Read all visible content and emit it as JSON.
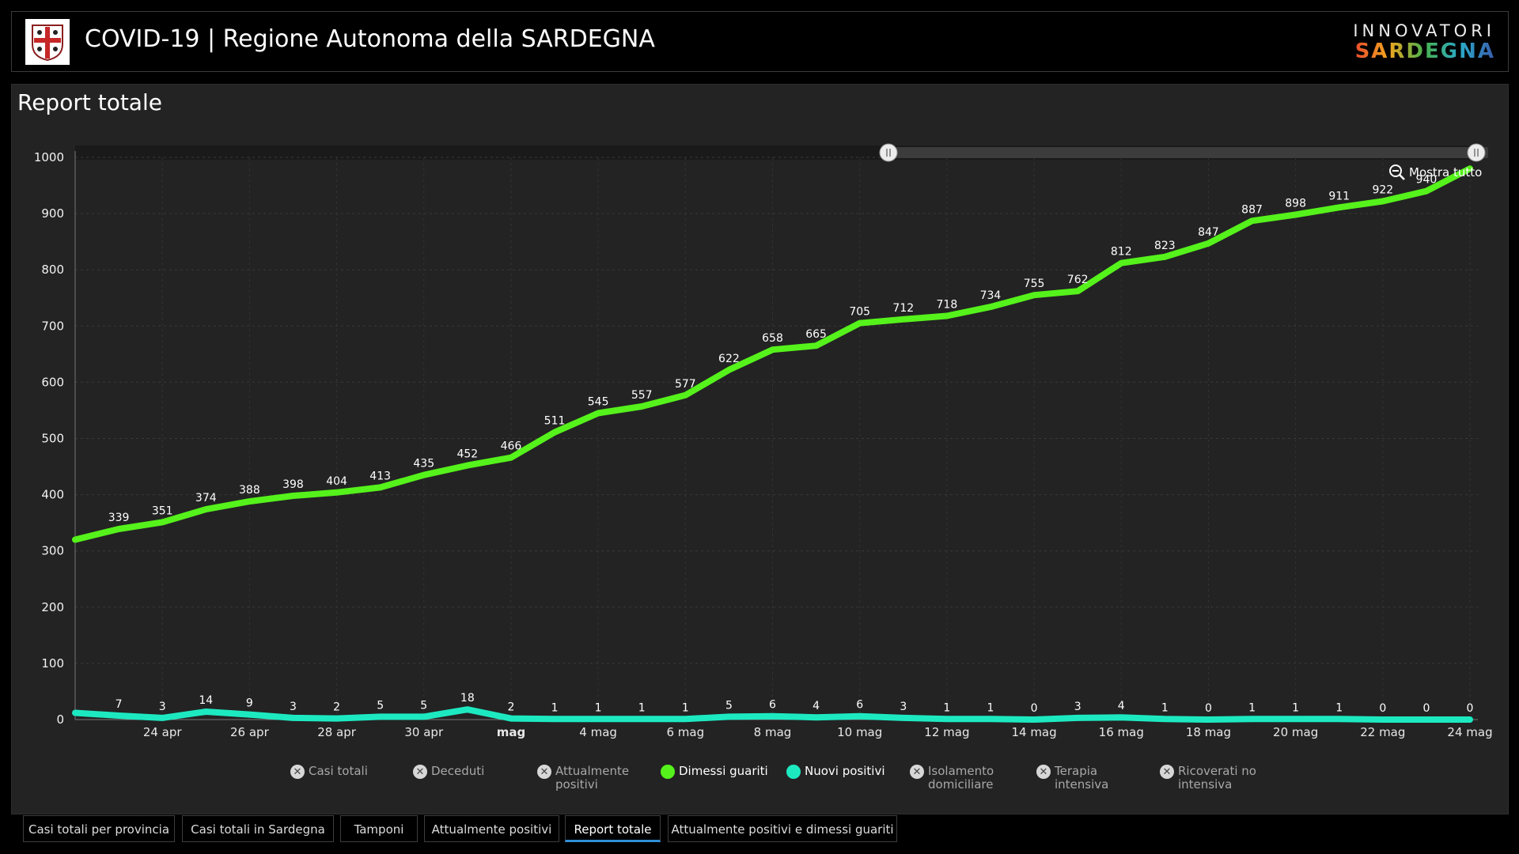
{
  "header": {
    "title": "COVID-19 | Regione Autonoma della SARDEGNA",
    "brand_top": "INNOVATORI",
    "brand_bottom": "SARDEGNA"
  },
  "panel": {
    "title": "Report totale"
  },
  "zoom": {
    "label": "Mostra tutto"
  },
  "legend": [
    {
      "label": "Casi totali",
      "active": false,
      "color": "#d7d7d7"
    },
    {
      "label": "Deceduti",
      "active": false,
      "color": "#d7d7d7"
    },
    {
      "label": "Attualmente positivi",
      "active": false,
      "color": "#d7d7d7"
    },
    {
      "label": "Dimessi guariti",
      "active": true,
      "color": "#55f21b"
    },
    {
      "label": "Nuovi positivi",
      "active": true,
      "color": "#1de9c1"
    },
    {
      "label": "Isolamento domiciliare",
      "active": false,
      "color": "#d7d7d7"
    },
    {
      "label": "Terapia intensiva",
      "active": false,
      "color": "#d7d7d7"
    },
    {
      "label": "Ricoverati no intensiva",
      "active": false,
      "color": "#d7d7d7"
    }
  ],
  "tabs": [
    {
      "label": "Casi totali per provincia",
      "active": false
    },
    {
      "label": "Casi totali in Sardegna",
      "active": false
    },
    {
      "label": "Tamponi",
      "active": false
    },
    {
      "label": "Attualmente positivi",
      "active": false
    },
    {
      "label": "Report totale",
      "active": true
    },
    {
      "label": "Attualmente positivi e dimessi guariti",
      "active": false
    }
  ],
  "chart_data": {
    "type": "line",
    "title": "Report totale",
    "x": [
      "22 apr",
      "23 apr",
      "24 apr",
      "25 apr",
      "26 apr",
      "27 apr",
      "28 apr",
      "29 apr",
      "30 apr",
      "1 mag",
      "2 mag",
      "3 mag",
      "4 mag",
      "5 mag",
      "6 mag",
      "7 mag",
      "8 mag",
      "9 mag",
      "10 mag",
      "11 mag",
      "12 mag",
      "13 mag",
      "14 mag",
      "15 mag",
      "16 mag",
      "17 mag",
      "18 mag",
      "19 mag",
      "20 mag",
      "21 mag",
      "22 mag",
      "23 mag",
      "24 mag"
    ],
    "x_tick_labels": [
      "24 apr",
      "26 apr",
      "28 apr",
      "30 apr",
      "mag",
      "4 mag",
      "6 mag",
      "8 mag",
      "10 mag",
      "12 mag",
      "14 mag",
      "16 mag",
      "18 mag",
      "20 mag",
      "22 mag",
      "24 mag"
    ],
    "ylim": [
      0,
      1000
    ],
    "y_ticks": [
      0,
      100,
      200,
      300,
      400,
      500,
      600,
      700,
      800,
      900,
      1000
    ],
    "grid": true,
    "series": [
      {
        "name": "Dimessi guariti",
        "color": "#55f21b",
        "values": [
          320,
          339,
          351,
          374,
          388,
          398,
          404,
          413,
          435,
          452,
          466,
          511,
          545,
          557,
          577,
          622,
          658,
          665,
          705,
          712,
          718,
          734,
          755,
          762,
          812,
          823,
          847,
          887,
          898,
          911,
          922,
          940,
          980
        ],
        "labels": [
          null,
          "339",
          "351",
          "374",
          "388",
          "398",
          "404",
          "413",
          "435",
          "452",
          "466",
          "511",
          "545",
          "557",
          "577",
          "622",
          "658",
          "665",
          "705",
          "712",
          "718",
          "734",
          "755",
          "762",
          "812",
          "823",
          "847",
          "887",
          "898",
          "911",
          "922",
          "940",
          null
        ]
      },
      {
        "name": "Nuovi positivi",
        "color": "#1de9c1",
        "values": [
          12,
          7,
          3,
          14,
          9,
          3,
          2,
          5,
          5,
          18,
          2,
          1,
          1,
          1,
          1,
          5,
          6,
          4,
          6,
          3,
          1,
          1,
          0,
          3,
          4,
          1,
          0,
          1,
          1,
          1,
          0,
          0,
          0
        ],
        "labels": [
          null,
          "7",
          "3",
          "14",
          "9",
          "3",
          "2",
          "5",
          "5",
          "18",
          "2",
          "1",
          "1",
          "1",
          "1",
          "5",
          "6",
          "4",
          "6",
          "3",
          "1",
          "1",
          "0",
          "3",
          "4",
          "1",
          "0",
          "1",
          "1",
          "1",
          "0",
          "0",
          "0"
        ]
      }
    ]
  }
}
